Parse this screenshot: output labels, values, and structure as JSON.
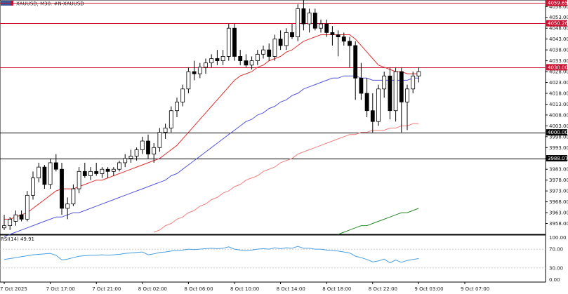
{
  "header": {
    "symbol_text": "XAUUSD, M30:  #N-XAUUSD"
  },
  "indicator": {
    "label": "RSI(14) 49.91",
    "levels": [
      100.0,
      70.0,
      30.0,
      0.0
    ],
    "level_labels": [
      "100.00",
      "70.00",
      "30.00",
      "0.00"
    ],
    "color": "#4a9fe0"
  },
  "colors": {
    "bull_body": "#ffffff",
    "bear_body": "#000000",
    "wick": "#000000",
    "ema_fast": "#e03030",
    "ema_mid": "#5555dd",
    "ema_slow": "#f08080",
    "ema_long": "#2a8a2a",
    "hline_red": "#c8102e",
    "hline_black": "#000000",
    "tag_red_bg": "#c8102e",
    "tag_black_bg": "#000000"
  },
  "chart_data": {
    "type": "candlestick",
    "symbol": "XAUUSD",
    "timeframe": "M30",
    "ylim": [
      3953,
      4061
    ],
    "y_ticks": [
      4058.0,
      4053.0,
      4048.0,
      4043.0,
      4038.0,
      4033.0,
      4028.0,
      4023.0,
      4018.0,
      4013.0,
      4008.0,
      4003.0,
      3998.0,
      3993.0,
      3988.0,
      3983.0,
      3978.0,
      3973.0,
      3968.0,
      3963.0,
      3958.0
    ],
    "x_labels": [
      "7 Oct 2025",
      "7 Oct 17:00",
      "7 Oct 21:00",
      "8 Oct 02:00",
      "8 Oct 06:00",
      "8 Oct 10:00",
      "8 Oct 14:00",
      "8 Oct 18:00",
      "8 Oct 22:00",
      "9 Oct 03:00",
      "9 Oct 07:00"
    ],
    "x_label_index": [
      0,
      8,
      16,
      24,
      32,
      40,
      48,
      56,
      64,
      72,
      80
    ],
    "hlines": [
      {
        "price": 4059.65,
        "color": "red",
        "tag": "4059.65"
      },
      {
        "price": 4050.26,
        "color": "red",
        "tag": "4050.26"
      },
      {
        "price": 4030.0,
        "color": "red",
        "tag": "4030.00"
      },
      {
        "price": 4000.0,
        "color": "black",
        "tag": "4000.00"
      },
      {
        "price": 3988.07,
        "color": "black",
        "tag": "3988.07"
      }
    ],
    "candles": [
      [
        3956,
        3962,
        3955,
        3957
      ],
      [
        3957,
        3961,
        3955,
        3960
      ],
      [
        3959,
        3964,
        3957,
        3962
      ],
      [
        3962,
        3964,
        3959,
        3960
      ],
      [
        3960,
        3973,
        3959,
        3971
      ],
      [
        3971,
        3982,
        3969,
        3979
      ],
      [
        3979,
        3986,
        3977,
        3984
      ],
      [
        3984,
        3985,
        3974,
        3976
      ],
      [
        3976,
        3988,
        3974,
        3986
      ],
      [
        3986,
        3990,
        3982,
        3983
      ],
      [
        3983,
        3986,
        3962,
        3965
      ],
      [
        3965,
        3970,
        3960,
        3967
      ],
      [
        3967,
        3976,
        3966,
        3974
      ],
      [
        3974,
        3984,
        3972,
        3982
      ],
      [
        3982,
        3986,
        3979,
        3980
      ],
      [
        3980,
        3984,
        3978,
        3982
      ],
      [
        3982,
        3986,
        3980,
        3981
      ],
      [
        3981,
        3984,
        3979,
        3983
      ],
      [
        3983,
        3984,
        3979,
        3982
      ],
      [
        3982,
        3984,
        3980,
        3983
      ],
      [
        3983,
        3987,
        3982,
        3986
      ],
      [
        3986,
        3990,
        3984,
        3988
      ],
      [
        3988,
        3992,
        3986,
        3989
      ],
      [
        3989,
        3993,
        3987,
        3992
      ],
      [
        3992,
        3998,
        3990,
        3996
      ],
      [
        3996,
        3999,
        3988,
        3990
      ],
      [
        3990,
        3995,
        3986,
        3993
      ],
      [
        3993,
        4002,
        3991,
        4000
      ],
      [
        4000,
        4004,
        3997,
        4002
      ],
      [
        4002,
        4012,
        4000,
        4010
      ],
      [
        4010,
        4016,
        4007,
        4014
      ],
      [
        4014,
        4022,
        4012,
        4020
      ],
      [
        4020,
        4030,
        4018,
        4028
      ],
      [
        4028,
        4033,
        4024,
        4027
      ],
      [
        4027,
        4032,
        4025,
        4030
      ],
      [
        4030,
        4034,
        4027,
        4032
      ],
      [
        4032,
        4036,
        4030,
        4034
      ],
      [
        4034,
        4038,
        4031,
        4033
      ],
      [
        4033,
        4038,
        4031,
        4035
      ],
      [
        4035,
        4050,
        4033,
        4048
      ],
      [
        4048,
        4050,
        4033,
        4035
      ],
      [
        4035,
        4038,
        4031,
        4033
      ],
      [
        4033,
        4036,
        4030,
        4031
      ],
      [
        4031,
        4035,
        4029,
        4033
      ],
      [
        4033,
        4038,
        4031,
        4036
      ],
      [
        4036,
        4040,
        4034,
        4038
      ],
      [
        4038,
        4041,
        4033,
        4035
      ],
      [
        4035,
        4045,
        4033,
        4043
      ],
      [
        4043,
        4047,
        4038,
        4040
      ],
      [
        4040,
        4048,
        4038,
        4046
      ],
      [
        4046,
        4050,
        4043,
        4044
      ],
      [
        4044,
        4059,
        4042,
        4057
      ],
      [
        4057,
        4061,
        4047,
        4050
      ],
      [
        4050,
        4057,
        4046,
        4055
      ],
      [
        4055,
        4057,
        4047,
        4048
      ],
      [
        4048,
        4052,
        4046,
        4050
      ],
      [
        4050,
        4052,
        4044,
        4046
      ],
      [
        4046,
        4049,
        4040,
        4045
      ],
      [
        4045,
        4047,
        4035,
        4044
      ],
      [
        4044,
        4046,
        4040,
        4042
      ],
      [
        4042,
        4044,
        4030,
        4040
      ],
      [
        4040,
        4042,
        4015,
        4025
      ],
      [
        4025,
        4032,
        4015,
        4018
      ],
      [
        4018,
        4025,
        4007,
        4010
      ],
      [
        4010,
        4018,
        4000,
        4005
      ],
      [
        4005,
        4022,
        4003,
        4020
      ],
      [
        4020,
        4028,
        4016,
        4026
      ],
      [
        4026,
        4030,
        4006,
        4010
      ],
      [
        4010,
        4030,
        4005,
        4028
      ],
      [
        4028,
        4030,
        4000,
        4014
      ],
      [
        4014,
        4022,
        4001,
        4020
      ],
      [
        4020,
        4028,
        4018,
        4026
      ],
      [
        4026,
        4030,
        4023,
        4028
      ]
    ],
    "series": [
      {
        "kind": "ema_fast",
        "values": [
          3960,
          3960,
          3961,
          3962,
          3963,
          3965,
          3967,
          3969,
          3971,
          3973,
          3974,
          3974,
          3974,
          3975,
          3976,
          3977,
          3978,
          3978,
          3979,
          3980,
          3981,
          3982,
          3983,
          3984,
          3985,
          3986,
          3987,
          3988,
          3990,
          3992,
          3994,
          3997,
          4000,
          4003,
          4006,
          4009,
          4012,
          4015,
          4018,
          4021,
          4024,
          4026,
          4027,
          4028,
          4030,
          4031,
          4033,
          4034,
          4035,
          4037,
          4038,
          4040,
          4042,
          4043,
          4044,
          4045,
          4045,
          4045,
          4045,
          4045,
          4045,
          4043,
          4040,
          4037,
          4034,
          4031,
          4030,
          4029,
          4028,
          4028,
          4027,
          4027,
          4027
        ]
      },
      {
        "kind": "ema_mid",
        "values": [
          3952,
          3953,
          3954,
          3955,
          3956,
          3957,
          3958,
          3959,
          3960,
          3961,
          3961,
          3962,
          3963,
          3963,
          3964,
          3965,
          3966,
          3967,
          3968,
          3969,
          3970,
          3971,
          3972,
          3973,
          3974,
          3975,
          3976,
          3977,
          3978,
          3980,
          3981,
          3983,
          3985,
          3987,
          3989,
          3991,
          3993,
          3995,
          3997,
          3999,
          4001,
          4003,
          4005,
          4006,
          4008,
          4009,
          4011,
          4012,
          4014,
          4015,
          4017,
          4018,
          4020,
          4021,
          4022,
          4023,
          4024,
          4025,
          4025,
          4026,
          4026,
          4026,
          4025,
          4025,
          4024,
          4024,
          4024,
          4024,
          4024,
          4024,
          4024,
          4025,
          4025
        ]
      },
      {
        "kind": "ema_slow",
        "values": [
          null,
          null,
          null,
          null,
          null,
          null,
          null,
          null,
          null,
          null,
          null,
          null,
          null,
          null,
          null,
          null,
          null,
          null,
          null,
          null,
          null,
          null,
          null,
          null,
          null,
          null,
          3954,
          3955,
          3957,
          3958,
          3960,
          3961,
          3963,
          3964,
          3966,
          3967,
          3969,
          3970,
          3972,
          3973,
          3975,
          3976,
          3978,
          3979,
          3980,
          3982,
          3983,
          3984,
          3986,
          3987,
          3988,
          3990,
          3991,
          3992,
          3993,
          3994,
          3995,
          3996,
          3997,
          3998,
          3999,
          3999,
          4000,
          4000,
          4001,
          4001,
          4001,
          4002,
          4002,
          4003,
          4003,
          4004,
          4004
        ]
      },
      {
        "kind": "ema_long",
        "values": [
          null,
          null,
          null,
          null,
          null,
          null,
          null,
          null,
          null,
          null,
          null,
          null,
          null,
          null,
          null,
          null,
          null,
          null,
          null,
          null,
          null,
          null,
          null,
          null,
          null,
          null,
          null,
          null,
          null,
          null,
          null,
          null,
          null,
          null,
          null,
          null,
          null,
          null,
          null,
          null,
          null,
          null,
          null,
          null,
          null,
          null,
          null,
          null,
          null,
          null,
          null,
          null,
          null,
          null,
          null,
          null,
          null,
          null,
          3953,
          3954,
          3955,
          3956,
          3957,
          3957,
          3958,
          3959,
          3960,
          3961,
          3962,
          3963,
          3963,
          3964,
          3965
        ]
      }
    ],
    "rsi": [
      48,
      50,
      52,
      54,
      56,
      58,
      59,
      60,
      61,
      57,
      47,
      49,
      52,
      55,
      56,
      57,
      57,
      58,
      57,
      58,
      59,
      61,
      62,
      63,
      64,
      58,
      60,
      63,
      64,
      66,
      67,
      68,
      70,
      69,
      70,
      71,
      72,
      71,
      72,
      75,
      70,
      68,
      67,
      68,
      70,
      71,
      70,
      73,
      71,
      73,
      72,
      76,
      72,
      72,
      70,
      70,
      68,
      67,
      66,
      64,
      62,
      55,
      52,
      48,
      43,
      45,
      49,
      41,
      47,
      42,
      46,
      48,
      50
    ]
  }
}
